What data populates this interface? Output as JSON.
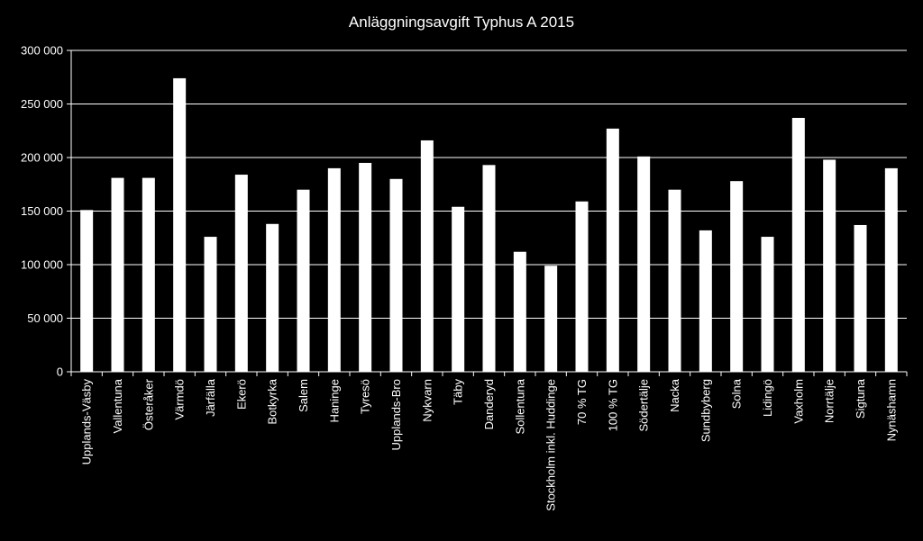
{
  "chart_data": {
    "type": "bar",
    "title": "Anläggningsavgift Typhus A 2015",
    "xlabel": "",
    "ylabel": "",
    "ylim": [
      0,
      300000
    ],
    "yticks": [
      0,
      50000,
      100000,
      150000,
      200000,
      250000,
      300000
    ],
    "ytick_labels": [
      "0",
      "50 000",
      "100 000",
      "150 000",
      "200 000",
      "250 000",
      "300 000"
    ],
    "grid": true,
    "legend": "none",
    "colors": {
      "background": "#000000",
      "bar": "#ffffff",
      "grid": "#ffffff",
      "text": "#ffffff"
    },
    "categories": [
      "Upplands-Väsby",
      "Vallentuna",
      "Österåker",
      "Värmdö",
      "Järfälla",
      "Ekerö",
      "Botkyrka",
      "Salem",
      "Haninge",
      "Tyresö",
      "Upplands-Bro",
      "Nykvarn",
      "Täby",
      "Danderyd",
      "Sollentuna",
      "Stockholm inkl. Huddinge",
      "70 % TG",
      "100 % TG",
      "Södertälje",
      "Nacka",
      "Sundbyberg",
      "Solna",
      "Lidingö",
      "Vaxholm",
      "Norrtälje",
      "Sigtuna",
      "Nynäshamn"
    ],
    "values": [
      151000,
      181000,
      181000,
      274000,
      126000,
      184000,
      138000,
      170000,
      190000,
      195000,
      180000,
      216000,
      154000,
      193000,
      112000,
      99000,
      159000,
      227000,
      201000,
      170000,
      132000,
      178000,
      126000,
      237000,
      198000,
      137000,
      190000
    ]
  }
}
